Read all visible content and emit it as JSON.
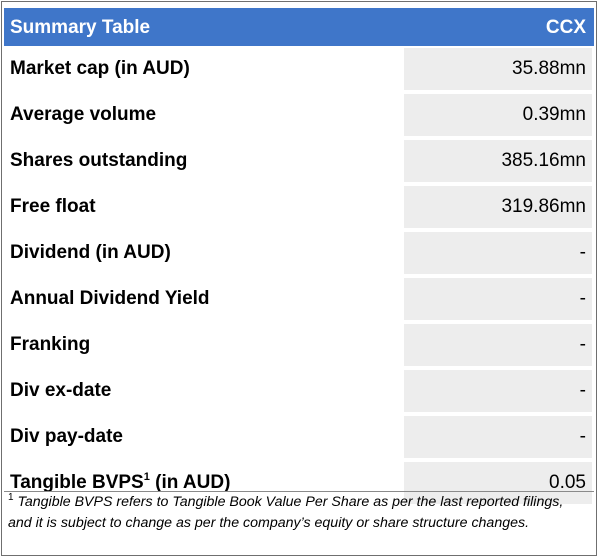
{
  "table": {
    "header_left": "Summary Table",
    "header_right": "CCX",
    "rows": [
      {
        "label": "Market cap (in AUD)",
        "value": "35.88mn"
      },
      {
        "label": "Average volume",
        "value": "0.39mn"
      },
      {
        "label": "Shares outstanding",
        "value": "385.16mn"
      },
      {
        "label": "Free float",
        "value": "319.86mn"
      },
      {
        "label": "Dividend (in AUD)",
        "value": "-"
      },
      {
        "label": "Annual Dividend Yield",
        "value": "-"
      },
      {
        "label": "Franking",
        "value": "-"
      },
      {
        "label": "Div ex-date",
        "value": "-"
      },
      {
        "label": "Div pay-date",
        "value": "-"
      },
      {
        "label_main": "Tangible BVPS",
        "label_sup": "1",
        "label_suffix": " (in AUD)",
        "value": "0.05"
      }
    ]
  },
  "footnote": {
    "marker": "1",
    "line1": " Tangible BVPS refers to Tangible Book Value Per Share as per the last reported filings,",
    "line2": "and it is subject to change as per the company’s equity or share structure changes."
  }
}
